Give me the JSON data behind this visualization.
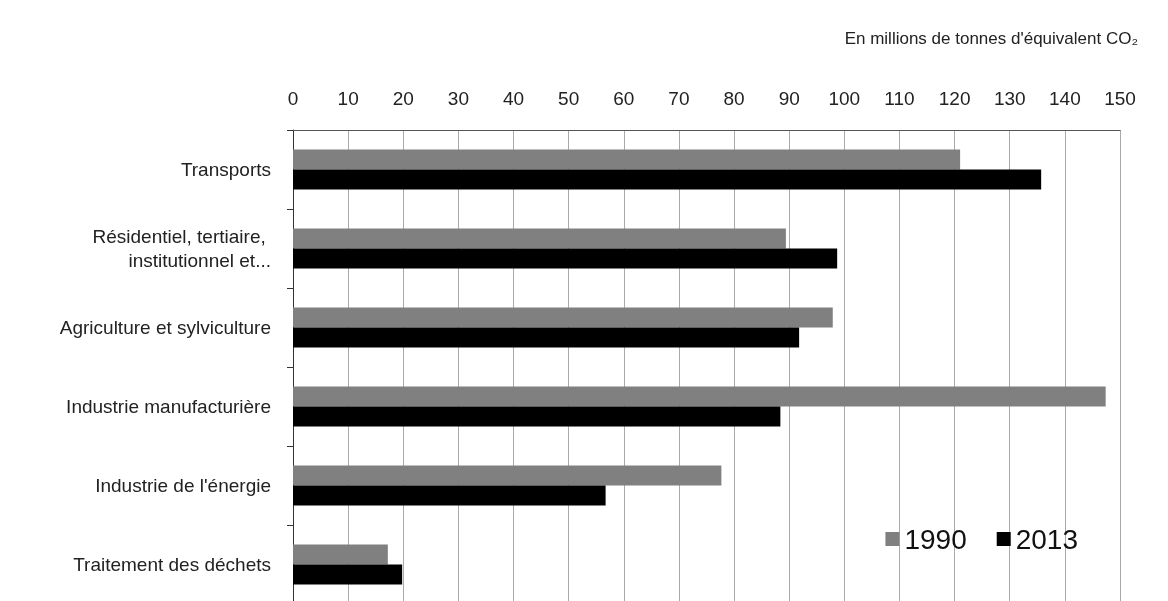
{
  "chart_data": {
    "type": "bar",
    "orientation": "horizontal",
    "xlabel": "En millions de tonnes d'équivalent CO₂",
    "categories": [
      "Transports",
      "Résidentiel, tertiaire, institutionnel et...",
      "Agriculture et sylviculture",
      "Industrie manufacturière",
      "Industrie de l'énergie",
      "Traitement des déchets"
    ],
    "series": [
      {
        "name": "1990",
        "color": "#808080",
        "values": [
          121,
          89.4,
          97.9,
          147.4,
          77.7,
          17.2
        ]
      },
      {
        "name": "2013",
        "color": "#000000",
        "values": [
          135.7,
          98.7,
          91.8,
          88.4,
          56.7,
          19.8
        ]
      }
    ],
    "xlim": [
      0,
      150
    ],
    "xticks": [
      0,
      10,
      20,
      30,
      40,
      50,
      60,
      70,
      80,
      90,
      100,
      110,
      120,
      130,
      140,
      150
    ],
    "grid": "x",
    "legend": "bottom right"
  }
}
